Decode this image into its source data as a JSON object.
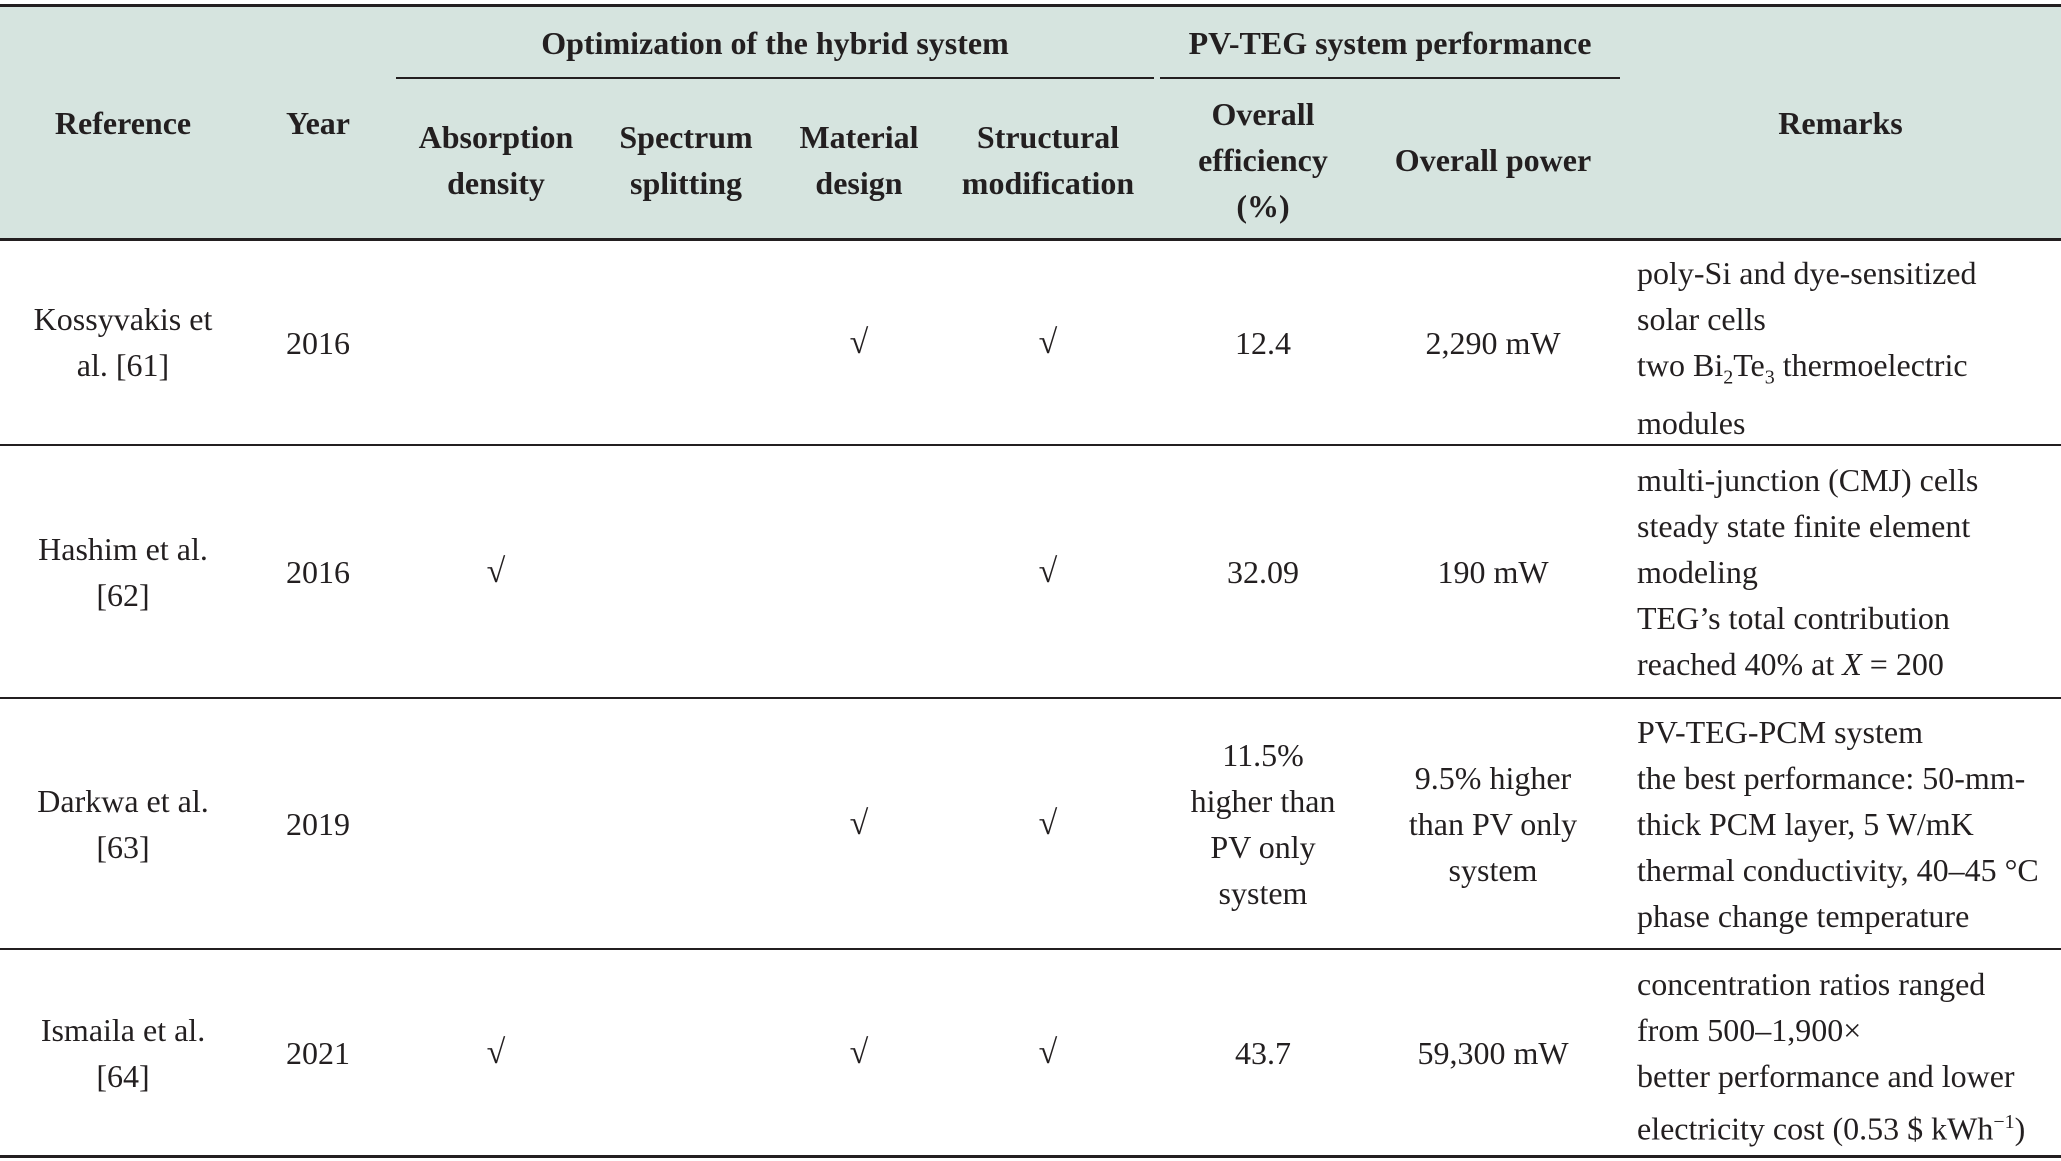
{
  "header": {
    "group_optimization": "Optimization of the hybrid system",
    "group_performance": "PV-TEG system performance",
    "reference": "Reference",
    "year": "Year",
    "absorption_1": "Absorption",
    "absorption_2": "density",
    "spectrum_1": "Spectrum",
    "spectrum_2": "splitting",
    "material_1": "Material",
    "material_2": "design",
    "structural_1": "Structural",
    "structural_2": "modification",
    "efficiency_1": "Overall",
    "efficiency_2": "efficiency",
    "efficiency_3": "(%)",
    "power": "Overall power",
    "remarks": "Remarks"
  },
  "check_mark": "√",
  "rows": [
    {
      "ref_1": "Kossyvakis et",
      "ref_2": "al. [61]",
      "year": "2016",
      "absorption": "",
      "spectrum": "",
      "material": "√",
      "structural": "√",
      "eff": [
        "12.4"
      ],
      "power": [
        "2,290 mW"
      ],
      "remarks": {
        "l1": "poly-Si and dye-sensitized",
        "l2": "solar cells",
        "l3_pre": "two Bi",
        "l3_sub1": "2",
        "l3_mid": "Te",
        "l3_sub2": "3",
        "l3_post": " thermoelectric",
        "l4": "modules"
      }
    },
    {
      "ref_1": "Hashim et al.",
      "ref_2": "[62]",
      "year": "2016",
      "absorption": "√",
      "spectrum": "",
      "material": "",
      "structural": "√",
      "eff": [
        "32.09"
      ],
      "power": [
        "190 mW"
      ],
      "remarks": {
        "l1": "multi-junction (CMJ) cells",
        "l2": "steady state finite element",
        "l3": "modeling",
        "l4": "TEG’s total contribution",
        "l5_pre": "reached 40% at ",
        "l5_var": "X",
        "l5_post": " = 200"
      }
    },
    {
      "ref_1": "Darkwa et al.",
      "ref_2": "[63]",
      "year": "2019",
      "absorption": "",
      "spectrum": "",
      "material": "√",
      "structural": "√",
      "eff": [
        "11.5%",
        "higher than",
        "PV only",
        "system"
      ],
      "power": [
        "9.5% higher",
        "than PV only",
        "system"
      ],
      "remarks": {
        "l1": "PV-TEG-PCM system",
        "l2": "the best performance: 50-mm-",
        "l3": "thick PCM layer, 5 W/mK",
        "l4": "thermal conductivity, 40–45 °C",
        "l5": "phase change temperature"
      }
    },
    {
      "ref_1": "Ismaila et al.",
      "ref_2": "[64]",
      "year": "2021",
      "absorption": "√",
      "spectrum": "",
      "material": "√",
      "structural": "√",
      "eff": [
        "43.7"
      ],
      "power": [
        "59,300 mW"
      ],
      "remarks": {
        "l1": "concentration ratios ranged",
        "l2": "from 500–1,900×",
        "l3": "better performance and lower",
        "l4_pre": "electricity cost (0.53 $ kWh",
        "l4_sup": "−1",
        "l4_post": ")"
      }
    }
  ]
}
